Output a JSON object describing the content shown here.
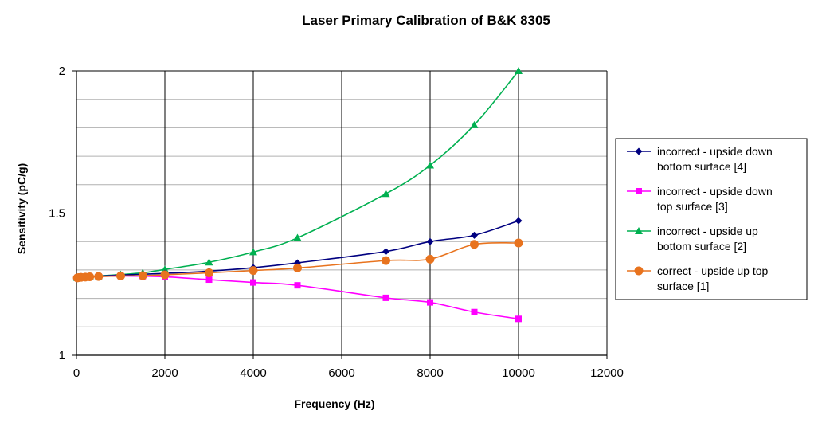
{
  "chart_data": {
    "type": "line",
    "title": "Laser Primary Calibration of B&K 8305",
    "xlabel": "Frequency  (Hz)",
    "ylabel": "Sensitivity  (pC/g)",
    "xlim": [
      0,
      12000
    ],
    "ylim": [
      1,
      2
    ],
    "x_ticks": [
      "0",
      "2000",
      "4000",
      "6000",
      "8000",
      "10000",
      "12000"
    ],
    "y_ticks": [
      "1",
      "1.5",
      "2"
    ],
    "grid": "major vertical and horizontal gridlines, minor horizontal gridlines",
    "legend_position": "right",
    "series": [
      {
        "name": "incorrect - upside down bottom surface [4]",
        "legend_lines": [
          "incorrect - upside down",
          "bottom surface [4]"
        ],
        "color": "#000080",
        "marker": "diamond",
        "x": [
          20,
          50,
          100,
          200,
          300,
          500,
          1000,
          1500,
          2000,
          3000,
          4000,
          5000,
          7000,
          8000,
          9000,
          10000
        ],
        "y": [
          1.272,
          1.273,
          1.274,
          1.275,
          1.276,
          1.278,
          1.282,
          1.285,
          1.288,
          1.296,
          1.308,
          1.325,
          1.365,
          1.4,
          1.422,
          1.473
        ]
      },
      {
        "name": "incorrect - upside down top surface [3]",
        "legend_lines": [
          "incorrect - upside down",
          "top surface [3]"
        ],
        "color": "#FF00FF",
        "marker": "square",
        "x": [
          20,
          50,
          100,
          200,
          300,
          500,
          1000,
          1500,
          2000,
          3000,
          4000,
          5000,
          7000,
          8000,
          9000,
          10000
        ],
        "y": [
          1.272,
          1.273,
          1.274,
          1.275,
          1.276,
          1.277,
          1.279,
          1.278,
          1.276,
          1.266,
          1.256,
          1.246,
          1.202,
          1.186,
          1.152,
          1.128
        ]
      },
      {
        "name": "incorrect - upside up bottom surface [2]",
        "legend_lines": [
          "incorrect - upside up",
          "bottom surface [2]"
        ],
        "color": "#00B050",
        "marker": "triangle",
        "x": [
          20,
          50,
          100,
          200,
          300,
          500,
          1000,
          1500,
          2000,
          3000,
          4000,
          5000,
          7000,
          8000,
          9000,
          10000
        ],
        "y": [
          1.272,
          1.273,
          1.274,
          1.276,
          1.277,
          1.279,
          1.284,
          1.29,
          1.302,
          1.327,
          1.363,
          1.413,
          1.568,
          1.668,
          1.81,
          2.0
        ]
      },
      {
        "name": "correct - upside up top surface [1]",
        "legend_lines": [
          "correct - upside up top",
          "surface [1]"
        ],
        "color": "#E8731E",
        "marker": "circle",
        "x": [
          20,
          50,
          100,
          200,
          300,
          500,
          1000,
          1500,
          2000,
          3000,
          4000,
          5000,
          7000,
          8000,
          9000,
          10000
        ],
        "y": [
          1.272,
          1.273,
          1.274,
          1.275,
          1.276,
          1.277,
          1.279,
          1.28,
          1.283,
          1.29,
          1.298,
          1.307,
          1.333,
          1.338,
          1.39,
          1.395
        ]
      }
    ]
  }
}
